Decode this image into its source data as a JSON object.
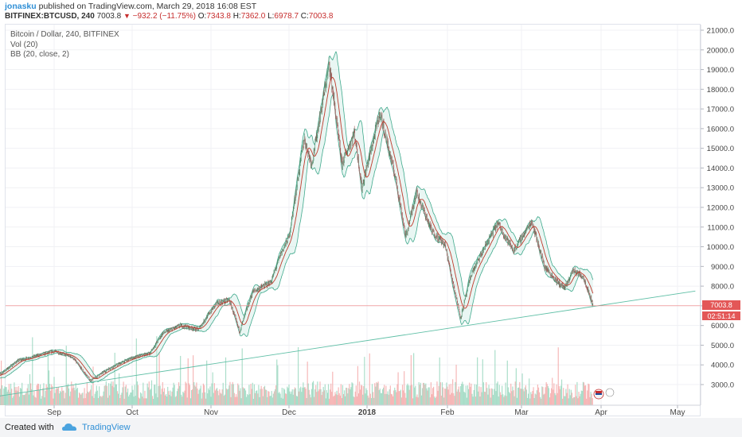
{
  "header": {
    "author": "jonasku",
    "published": "published on TradingView.com, March 29, 2018 16:08 EST",
    "symbol": "BITFINEX:BTCUSD, 240",
    "last": "7003.8",
    "change": "−932.2 (−11.75%)",
    "o_label": "O:",
    "o_value": "7343.8",
    "h_label": "H:",
    "h_value": "7362.0",
    "l_label": "L:",
    "l_value": "6978.7",
    "c_label": "C:",
    "c_value": "7003.8"
  },
  "legend": {
    "line1": "Bitcoin / Dollar, 240, BITFINEX",
    "line2": "Vol (20)",
    "line3": "BB (20, close, 2)"
  },
  "footer": {
    "created_with": "Created with",
    "brand": "TradingView"
  },
  "chart_data": {
    "type": "candlestick",
    "y_ticks": [
      "21000.0",
      "20000.0",
      "19000.0",
      "18000.0",
      "17000.0",
      "16000.0",
      "15000.0",
      "14000.0",
      "13000.0",
      "12000.0",
      "11000.0",
      "10000.0",
      "9000.0",
      "8000.0",
      "7000.0",
      "6000.0",
      "5000.0",
      "4000.0",
      "3000.0"
    ],
    "y_tick_values": [
      21000,
      20000,
      19000,
      18000,
      17000,
      16000,
      15000,
      14000,
      13000,
      12000,
      11000,
      10000,
      9000,
      8000,
      7000,
      6000,
      5000,
      4000,
      3000
    ],
    "ylim": [
      2000,
      21500
    ],
    "x_ticks": [
      "Sep",
      "Oct",
      "Nov",
      "Dec",
      "2018",
      "Feb",
      "Mar",
      "Apr",
      "May"
    ],
    "x_tick_values": [
      20170901,
      20171001,
      20171101,
      20171201,
      20180101,
      20180201,
      20180301,
      20180401,
      20180501
    ],
    "last_price_label": "7003.8",
    "last_price_value": 7003.8,
    "countdown_label": "02:51:14",
    "trendline": {
      "start": [
        "20170810",
        2400
      ],
      "end": [
        "20180508",
        7750
      ]
    },
    "price_path": [
      [
        "20170810",
        3400
      ],
      [
        "20170818",
        4200
      ],
      [
        "20170901",
        4700
      ],
      [
        "20170908",
        4400
      ],
      [
        "20170915",
        3200
      ],
      [
        "20170922",
        3800
      ],
      [
        "20170930",
        4300
      ],
      [
        "20171008",
        4600
      ],
      [
        "20171013",
        5600
      ],
      [
        "20171020",
        6000
      ],
      [
        "20171027",
        5800
      ],
      [
        "20171103",
        7100
      ],
      [
        "20171108",
        7300
      ],
      [
        "20171112",
        5700
      ],
      [
        "20171117",
        7700
      ],
      [
        "20171124",
        8200
      ],
      [
        "20171128",
        9700
      ],
      [
        "20171201",
        10500
      ],
      [
        "20171207",
        15500
      ],
      [
        "20171210",
        14200
      ],
      [
        "20171217",
        19300
      ],
      [
        "20171222",
        14200
      ],
      [
        "20171227",
        15800
      ],
      [
        "20171230",
        13000
      ],
      [
        "20180106",
        16800
      ],
      [
        "20180112",
        13500
      ],
      [
        "20180116",
        10500
      ],
      [
        "20180120",
        12800
      ],
      [
        "20180126",
        10800
      ],
      [
        "20180131",
        10100
      ],
      [
        "20180206",
        6400
      ],
      [
        "20180210",
        8600
      ],
      [
        "20180216",
        10200
      ],
      [
        "20180220",
        11200
      ],
      [
        "20180226",
        9800
      ],
      [
        "20180305",
        11300
      ],
      [
        "20180310",
        9000
      ],
      [
        "20180315",
        8200
      ],
      [
        "20180318",
        7900
      ],
      [
        "20180321",
        8800
      ],
      [
        "20180325",
        8500
      ],
      [
        "20180329",
        7003.8
      ]
    ]
  }
}
